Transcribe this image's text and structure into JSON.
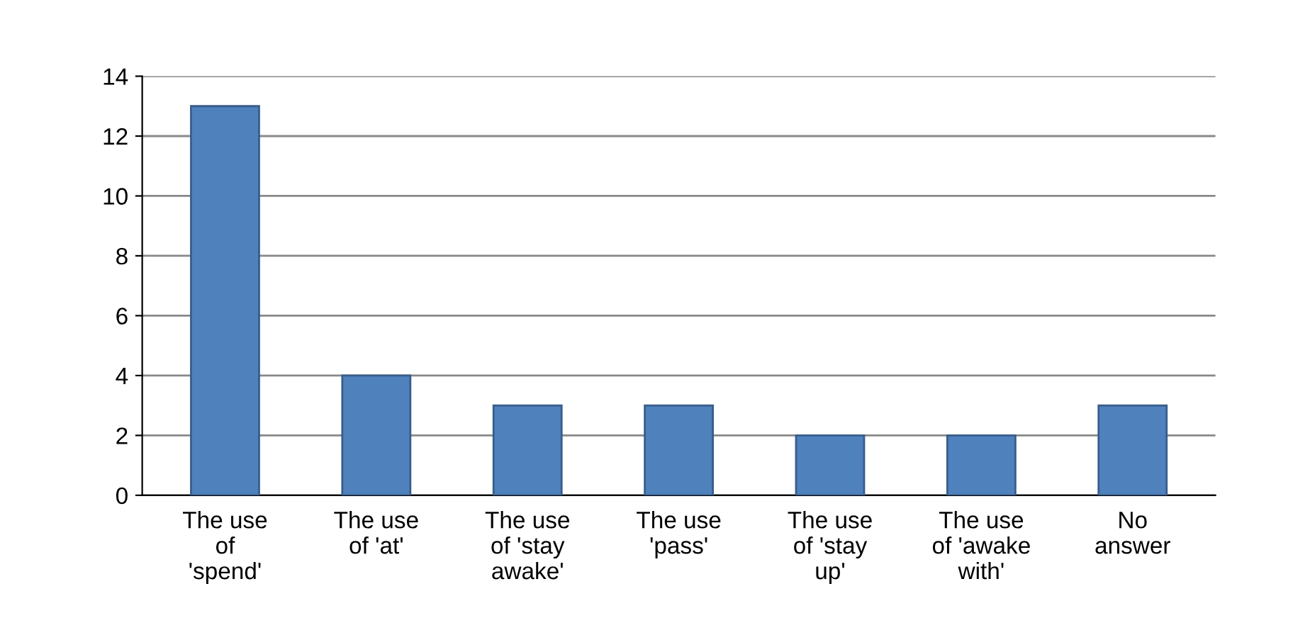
{
  "chart_data": {
    "type": "bar",
    "categories": [
      "The use\nof\n'spend'",
      "The use\nof 'at'",
      "The use\nof 'stay\nawake'",
      "The use\n'pass'",
      "The use\nof 'stay\nup'",
      "The use\nof 'awake\nwith'",
      "No\nanswer"
    ],
    "values": [
      13,
      4,
      3,
      3,
      2,
      2,
      3
    ],
    "color": "#4f81bd",
    "ylim": [
      0,
      14
    ],
    "yticks": [
      0,
      2,
      4,
      6,
      8,
      10,
      12,
      14
    ],
    "grid": "y",
    "legend": false
  }
}
